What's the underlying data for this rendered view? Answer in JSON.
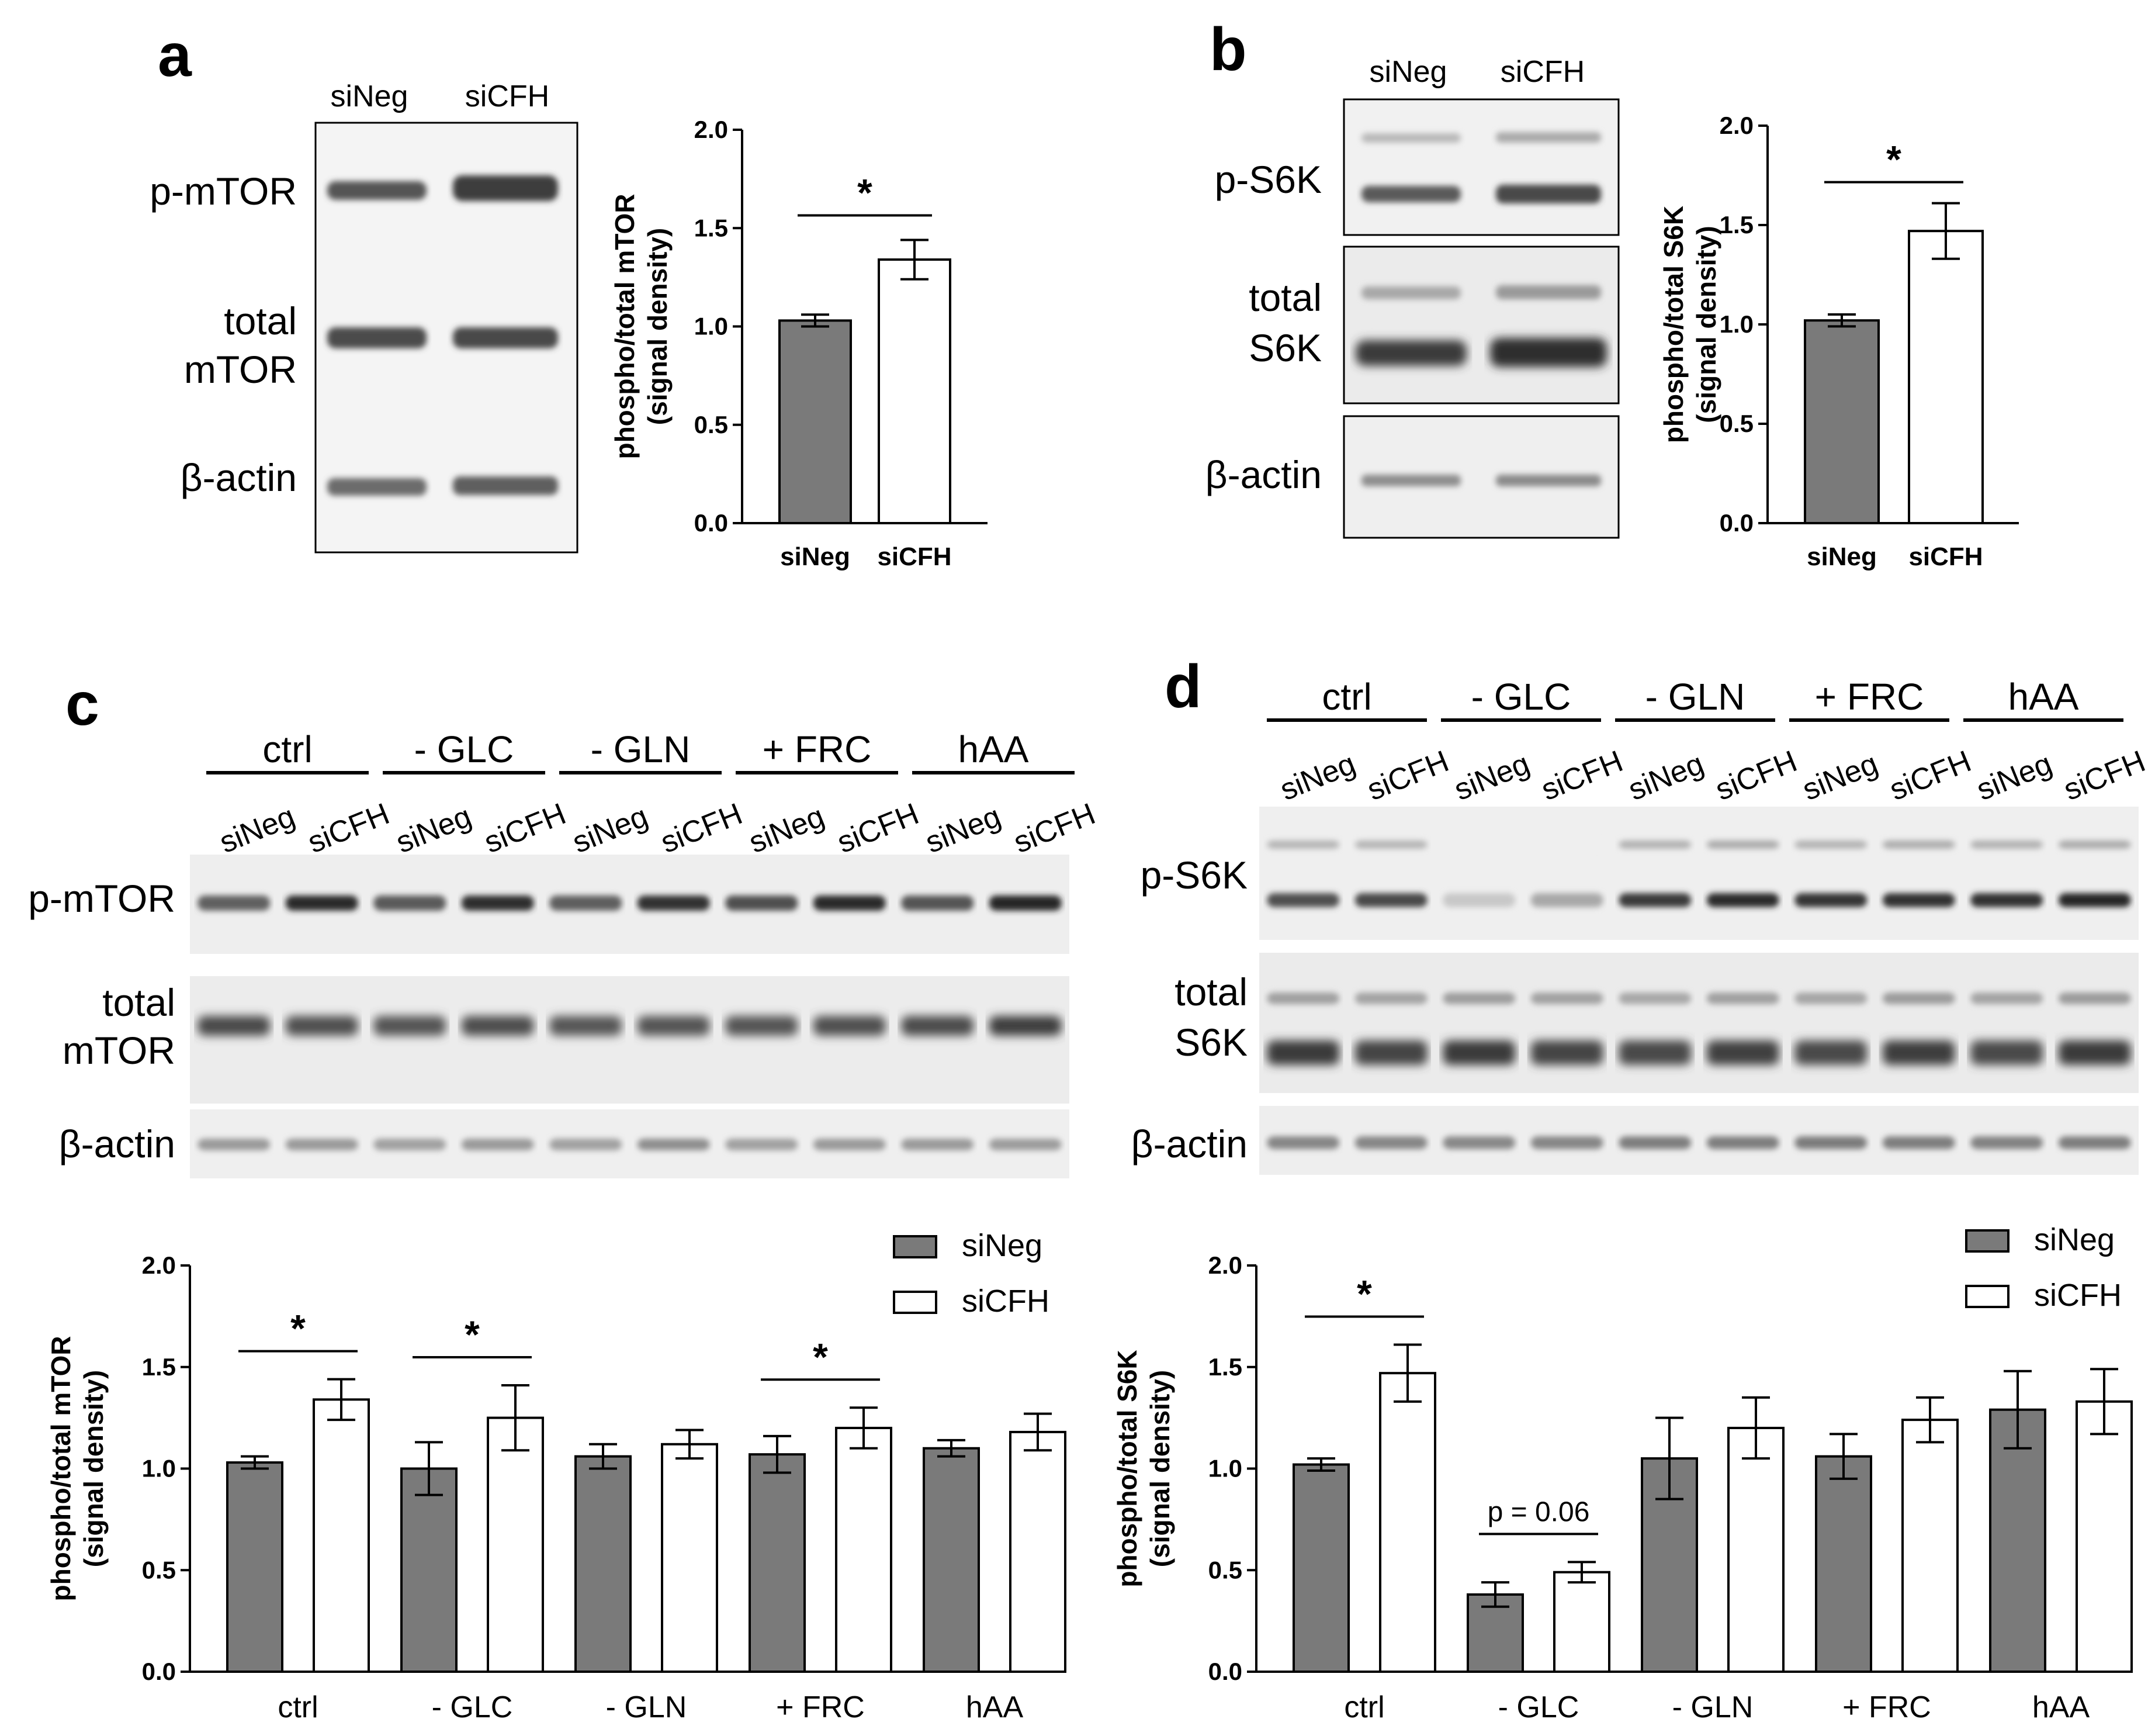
{
  "colors": {
    "siNeg": "#7a7a7a",
    "siCFH": "#ffffff",
    "axis": "#000000"
  },
  "panels": {
    "a": {
      "letter": "a",
      "lanes": [
        "siNeg",
        "siCFH"
      ],
      "blot_labels": [
        "p-mTOR",
        "total",
        "mTOR",
        "β-actin"
      ]
    },
    "b": {
      "letter": "b",
      "lanes": [
        "siNeg",
        "siCFH"
      ],
      "blot_labels": [
        "p-S6K",
        "total",
        "S6K",
        "β-actin"
      ]
    },
    "c": {
      "letter": "c",
      "groups": [
        "ctrl",
        "- GLC",
        "- GLN",
        "+ FRC",
        "hAA"
      ],
      "lanes": [
        "siNeg",
        "siCFH"
      ],
      "blot_labels": [
        "p-mTOR",
        "total",
        "mTOR",
        "β-actin"
      ]
    },
    "d": {
      "letter": "d",
      "groups": [
        "ctrl",
        "- GLC",
        "- GLN",
        "+ FRC",
        "hAA"
      ],
      "lanes": [
        "siNeg",
        "siCFH"
      ],
      "blot_labels": [
        "p-S6K",
        "total",
        "S6K",
        "β-actin"
      ]
    }
  },
  "chart_data": [
    {
      "id": "a",
      "type": "bar",
      "categories": [
        "siNeg",
        "siCFH"
      ],
      "values": [
        1.03,
        1.34
      ],
      "errors": [
        0.03,
        0.1
      ],
      "ylabel": [
        "phospho/total mTOR",
        "(signal density)"
      ],
      "ylim": [
        0,
        2.0
      ],
      "yticks": [
        "0.0",
        "0.5",
        "1.0",
        "1.5",
        "2.0"
      ],
      "significance": [
        {
          "from": 0,
          "to": 1,
          "text": "*"
        }
      ]
    },
    {
      "id": "b",
      "type": "bar",
      "categories": [
        "siNeg",
        "siCFH"
      ],
      "values": [
        1.02,
        1.47
      ],
      "errors": [
        0.03,
        0.14
      ],
      "ylabel": [
        "phospho/total S6K",
        "(signal density)"
      ],
      "ylim": [
        0,
        2.0
      ],
      "yticks": [
        "0.0",
        "0.5",
        "1.0",
        "1.5",
        "2.0"
      ],
      "significance": [
        {
          "from": 0,
          "to": 1,
          "text": "*"
        }
      ]
    },
    {
      "id": "c",
      "type": "bar",
      "categories": [
        "ctrl",
        "- GLC",
        "- GLN",
        "+ FRC",
        "hAA"
      ],
      "series": [
        {
          "name": "siNeg",
          "values": [
            1.03,
            1.0,
            1.06,
            1.07,
            1.1
          ],
          "errors": [
            0.03,
            0.13,
            0.06,
            0.09,
            0.04
          ]
        },
        {
          "name": "siCFH",
          "values": [
            1.34,
            1.25,
            1.12,
            1.2,
            1.18
          ],
          "errors": [
            0.1,
            0.16,
            0.07,
            0.1,
            0.09
          ]
        }
      ],
      "ylabel": [
        "phospho/total mTOR",
        "(signal density)"
      ],
      "ylim": [
        0,
        2.0
      ],
      "yticks": [
        "0.0",
        "0.5",
        "1.0",
        "1.5",
        "2.0"
      ],
      "legend": "top-right",
      "significance": [
        {
          "group": 0,
          "text": "*"
        },
        {
          "group": 1,
          "text": "*"
        },
        {
          "group": 3,
          "text": "*"
        }
      ]
    },
    {
      "id": "d",
      "type": "bar",
      "categories": [
        "ctrl",
        "- GLC",
        "- GLN",
        "+ FRC",
        "hAA"
      ],
      "series": [
        {
          "name": "siNeg",
          "values": [
            1.02,
            0.38,
            1.05,
            1.06,
            1.29
          ],
          "errors": [
            0.03,
            0.06,
            0.2,
            0.11,
            0.19
          ]
        },
        {
          "name": "siCFH",
          "values": [
            1.47,
            0.49,
            1.2,
            1.24,
            1.33
          ],
          "errors": [
            0.14,
            0.05,
            0.15,
            0.11,
            0.16
          ]
        }
      ],
      "ylabel": [
        "phospho/total S6K",
        "(signal density)"
      ],
      "ylim": [
        0,
        2.0
      ],
      "yticks": [
        "0.0",
        "0.5",
        "1.0",
        "1.5",
        "2.0"
      ],
      "legend": "top-right",
      "significance": [
        {
          "group": 0,
          "text": "*"
        },
        {
          "group": 1,
          "text": "p = 0.06"
        }
      ]
    }
  ]
}
